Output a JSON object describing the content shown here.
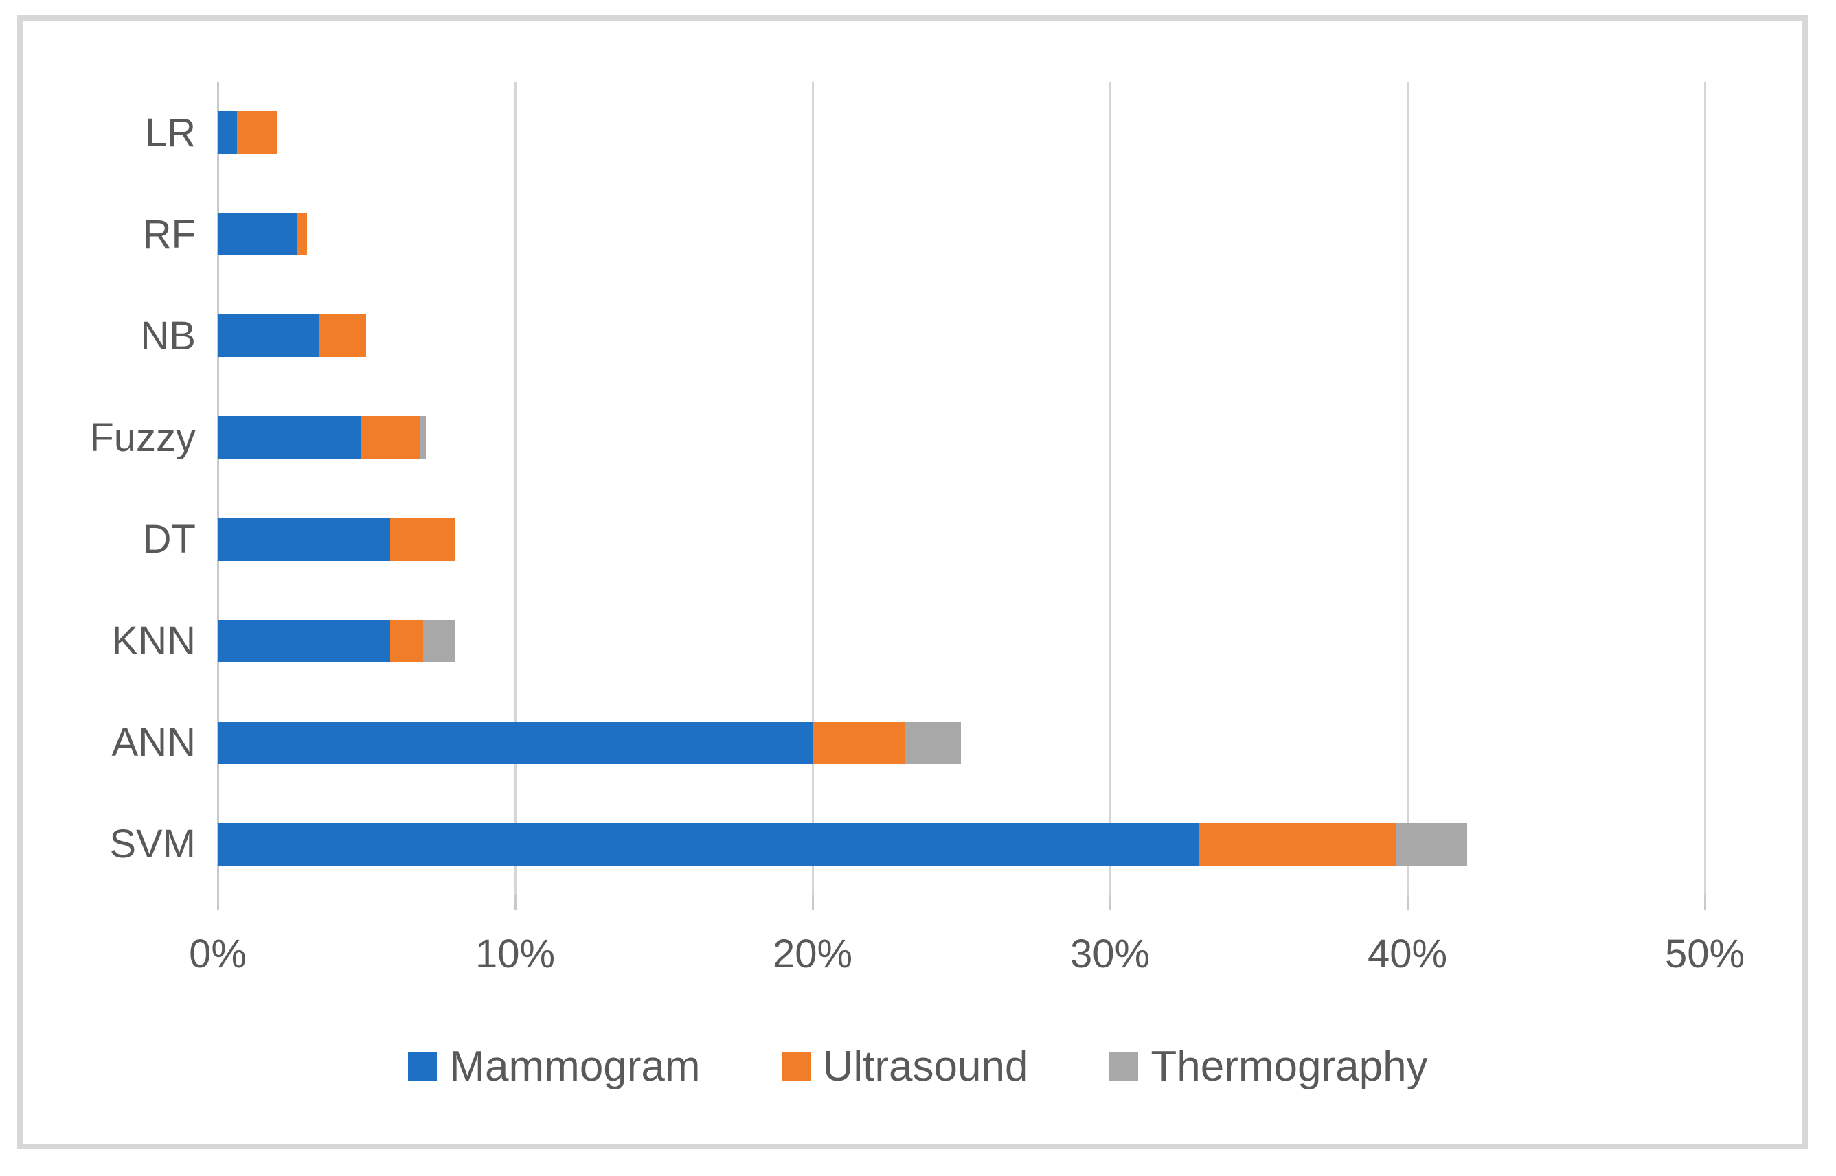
{
  "chart_data": {
    "type": "bar",
    "orientation": "horizontal",
    "stacked": true,
    "title": "",
    "xlabel": "",
    "ylabel": "",
    "categories": [
      "LR",
      "RF",
      "NB",
      "Fuzzy",
      "DT",
      "KNN",
      "ANN",
      "SVM"
    ],
    "series": [
      {
        "name": "Mammogram",
        "color": "#1d70c4",
        "values": [
          0.65,
          2.65,
          3.4,
          4.8,
          5.8,
          5.8,
          20.0,
          33.0
        ]
      },
      {
        "name": "Ultrasound",
        "color": "#f27d28",
        "values": [
          1.35,
          0.35,
          1.6,
          2.0,
          2.2,
          1.1,
          3.1,
          6.6
        ]
      },
      {
        "name": "Thermography",
        "color": "#a8a8a8",
        "values": [
          0,
          0,
          0,
          0.2,
          0,
          1.1,
          1.9,
          2.4
        ]
      }
    ],
    "category_totals_percent": [
      2,
      3,
      5,
      7,
      8,
      8,
      25,
      42
    ],
    "xlim": [
      0,
      50
    ],
    "xticks": [
      0,
      10,
      20,
      30,
      40,
      50
    ],
    "xticklabels": [
      "0%",
      "10%",
      "20%",
      "30%",
      "40%",
      "50%"
    ],
    "grid": "vertical",
    "gridline_color": "#d6d6d6",
    "frame_color": "#d8d8d8",
    "text_color": "#595959",
    "legend_position": "bottom",
    "legend_items": [
      "Mammogram",
      "Ultrasound",
      "Thermography"
    ]
  }
}
